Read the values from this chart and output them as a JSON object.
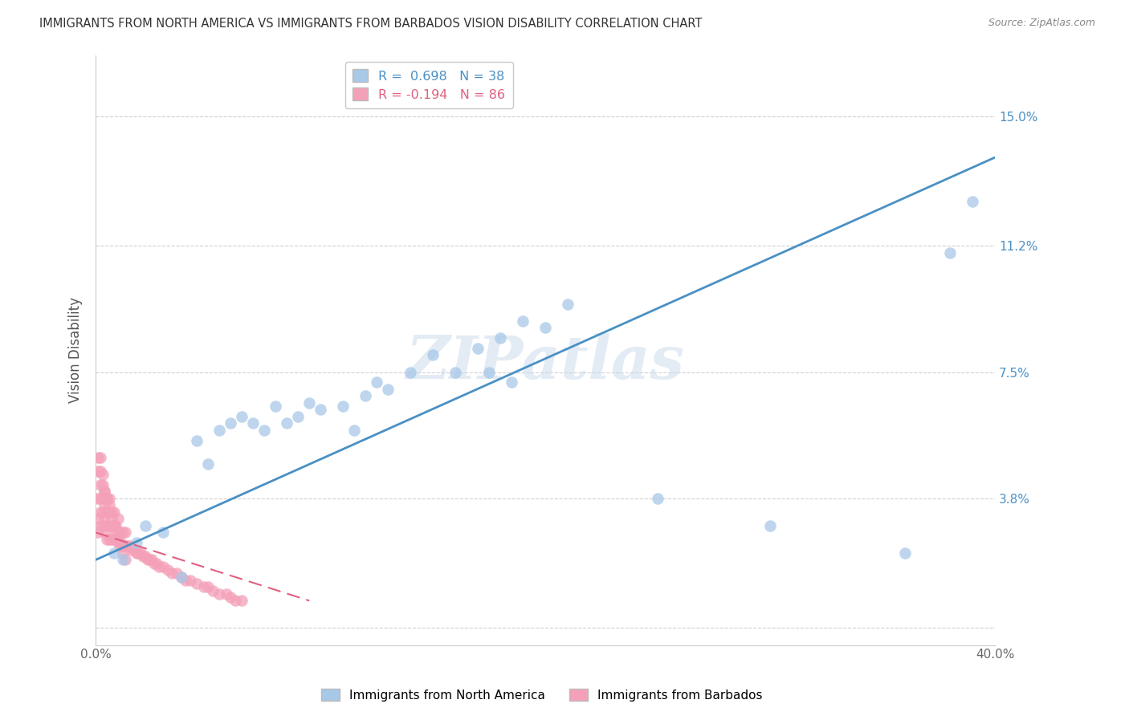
{
  "title": "IMMIGRANTS FROM NORTH AMERICA VS IMMIGRANTS FROM BARBADOS VISION DISABILITY CORRELATION CHART",
  "source": "Source: ZipAtlas.com",
  "ylabel": "Vision Disability",
  "xlim": [
    0.0,
    0.4
  ],
  "ylim": [
    -0.005,
    0.168
  ],
  "ytick_positions": [
    0.0,
    0.038,
    0.075,
    0.112,
    0.15
  ],
  "ytick_labels": [
    "",
    "3.8%",
    "7.5%",
    "11.2%",
    "15.0%"
  ],
  "grid_color": "#d0d0d0",
  "background_color": "#ffffff",
  "blue_color": "#a8c8e8",
  "pink_color": "#f4a0b8",
  "blue_line_color": "#4a90c4",
  "pink_line_color": "#e06080",
  "r_blue": 0.698,
  "n_blue": 38,
  "r_pink": -0.194,
  "n_pink": 86,
  "watermark": "ZIPatlas",
  "legend_label_blue": "Immigrants from North America",
  "legend_label_pink": "Immigrants from Barbados",
  "blue_x": [
    0.008,
    0.012,
    0.018,
    0.022,
    0.03,
    0.038,
    0.045,
    0.05,
    0.055,
    0.06,
    0.065,
    0.07,
    0.075,
    0.08,
    0.085,
    0.09,
    0.095,
    0.1,
    0.11,
    0.115,
    0.12,
    0.125,
    0.13,
    0.14,
    0.15,
    0.16,
    0.17,
    0.175,
    0.18,
    0.185,
    0.19,
    0.2,
    0.21,
    0.25,
    0.3,
    0.36,
    0.38,
    0.39
  ],
  "blue_y": [
    0.022,
    0.02,
    0.025,
    0.03,
    0.028,
    0.015,
    0.055,
    0.048,
    0.058,
    0.06,
    0.062,
    0.06,
    0.058,
    0.065,
    0.06,
    0.062,
    0.066,
    0.064,
    0.065,
    0.058,
    0.068,
    0.072,
    0.07,
    0.075,
    0.08,
    0.075,
    0.082,
    0.075,
    0.085,
    0.072,
    0.09,
    0.088,
    0.095,
    0.038,
    0.03,
    0.022,
    0.11,
    0.125
  ],
  "pink_x": [
    0.001,
    0.001,
    0.001,
    0.002,
    0.002,
    0.002,
    0.002,
    0.003,
    0.003,
    0.003,
    0.004,
    0.004,
    0.004,
    0.004,
    0.005,
    0.005,
    0.005,
    0.005,
    0.006,
    0.006,
    0.006,
    0.006,
    0.007,
    0.007,
    0.007,
    0.008,
    0.008,
    0.008,
    0.009,
    0.009,
    0.01,
    0.01,
    0.01,
    0.011,
    0.011,
    0.012,
    0.012,
    0.013,
    0.013,
    0.014,
    0.015,
    0.016,
    0.017,
    0.018,
    0.019,
    0.02,
    0.021,
    0.022,
    0.023,
    0.024,
    0.025,
    0.026,
    0.027,
    0.028,
    0.03,
    0.032,
    0.034,
    0.036,
    0.038,
    0.04,
    0.042,
    0.045,
    0.048,
    0.05,
    0.052,
    0.055,
    0.058,
    0.06,
    0.062,
    0.065,
    0.001,
    0.001,
    0.002,
    0.002,
    0.003,
    0.003,
    0.004,
    0.005,
    0.006,
    0.007,
    0.008,
    0.009,
    0.01,
    0.011,
    0.012,
    0.013
  ],
  "pink_y": [
    0.028,
    0.032,
    0.038,
    0.03,
    0.034,
    0.038,
    0.042,
    0.03,
    0.034,
    0.038,
    0.028,
    0.032,
    0.036,
    0.04,
    0.026,
    0.03,
    0.034,
    0.038,
    0.026,
    0.03,
    0.034,
    0.038,
    0.026,
    0.03,
    0.034,
    0.026,
    0.03,
    0.034,
    0.026,
    0.03,
    0.025,
    0.028,
    0.032,
    0.025,
    0.028,
    0.024,
    0.028,
    0.024,
    0.028,
    0.024,
    0.024,
    0.023,
    0.023,
    0.022,
    0.022,
    0.022,
    0.021,
    0.021,
    0.02,
    0.02,
    0.02,
    0.019,
    0.019,
    0.018,
    0.018,
    0.017,
    0.016,
    0.016,
    0.015,
    0.014,
    0.014,
    0.013,
    0.012,
    0.012,
    0.011,
    0.01,
    0.01,
    0.009,
    0.008,
    0.008,
    0.05,
    0.046,
    0.05,
    0.046,
    0.045,
    0.042,
    0.04,
    0.038,
    0.036,
    0.032,
    0.03,
    0.028,
    0.026,
    0.024,
    0.022,
    0.02
  ],
  "blue_line_x0": 0.0,
  "blue_line_x1": 0.4,
  "blue_line_y0": 0.02,
  "blue_line_y1": 0.138,
  "pink_line_x0": 0.0,
  "pink_line_x1": 0.095,
  "pink_line_y0": 0.028,
  "pink_line_y1": 0.008
}
